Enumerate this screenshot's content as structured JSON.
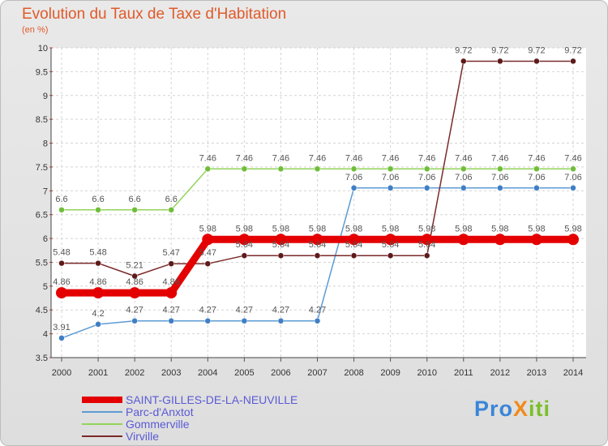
{
  "header": {
    "title": "Evolution du Taux de Taxe d'Habitation",
    "unit": "(en %)"
  },
  "logo": {
    "text": "ProXiti",
    "parts": [
      {
        "t": "Pro",
        "color": "#3a86d8"
      },
      {
        "t": "X",
        "color": "#f08a1c"
      },
      {
        "t": "iti",
        "color": "#7bbf2a"
      }
    ]
  },
  "chart_data": {
    "type": "line",
    "title": "Evolution du Taux de Taxe d'Habitation",
    "ylabel": "(en %)",
    "xlabel": "",
    "ylim": [
      3.5,
      10
    ],
    "ytick_step": 0.5,
    "yticks": [
      "3.5",
      "4",
      "4.5",
      "5",
      "5.5",
      "6",
      "6.5",
      "7",
      "7.5",
      "8",
      "8.5",
      "9",
      "9.5",
      "10"
    ],
    "grid": true,
    "legend_position": "bottom-left",
    "x": [
      "2000",
      "2001",
      "2002",
      "2003",
      "2004",
      "2005",
      "2006",
      "2007",
      "2008",
      "2009",
      "2010",
      "2011",
      "2012",
      "2013",
      "2014"
    ],
    "series": [
      {
        "name": "SAINT-GILLES-DE-LA-NEUVILLE",
        "color": "#e40000",
        "dot": "#e40000",
        "bold": true,
        "values": [
          4.86,
          4.86,
          4.86,
          4.86,
          5.98,
          5.98,
          5.98,
          5.98,
          5.98,
          5.98,
          5.98,
          5.98,
          5.98,
          5.98,
          5.98
        ],
        "labels": [
          "4.86",
          "4.86",
          "4.86",
          "4.86",
          "5.98",
          "5.98",
          "5.98",
          "5.98",
          "5.98",
          "5.98",
          "5.98",
          "5.98",
          "5.98",
          "5.98",
          "5.98"
        ]
      },
      {
        "name": "Parc-d'Anxtot",
        "color": "#5b9bd5",
        "dot": "#3f7fc4",
        "bold": false,
        "values": [
          3.91,
          4.2,
          4.27,
          4.27,
          4.27,
          4.27,
          4.27,
          4.27,
          7.06,
          7.06,
          7.06,
          7.06,
          7.06,
          7.06,
          7.06
        ],
        "labels": [
          "3.91",
          "4.2",
          "4.27",
          "4.27",
          "4.27",
          "4.27",
          "4.27",
          "4.27",
          "7.06",
          "7.06",
          "7.06",
          "7.06",
          "7.06",
          "7.06",
          "7.06"
        ]
      },
      {
        "name": "Gommerville",
        "color": "#93d35a",
        "dot": "#6fbe3a",
        "bold": false,
        "values": [
          6.6,
          6.6,
          6.6,
          6.6,
          7.46,
          7.46,
          7.46,
          7.46,
          7.46,
          7.46,
          7.46,
          7.46,
          7.46,
          7.46,
          7.46
        ],
        "labels": [
          "6.6",
          "6.6",
          "6.6",
          "6.6",
          "7.46",
          "7.46",
          "7.46",
          "7.46",
          "7.46",
          "7.46",
          "7.46",
          "7.46",
          "7.46",
          "7.46",
          "7.46"
        ]
      },
      {
        "name": "Virville",
        "color": "#7a2a2a",
        "dot": "#5e1a1a",
        "bold": false,
        "values": [
          5.48,
          5.48,
          5.21,
          5.47,
          5.47,
          5.64,
          5.64,
          5.64,
          5.64,
          5.64,
          5.64,
          9.72,
          9.72,
          9.72,
          9.72
        ],
        "labels": [
          "5.48",
          "5.48",
          "5.21",
          "5.47",
          "5.47",
          "5.64",
          "5.64",
          "5.64",
          "5.64",
          "5.64",
          "5.64",
          "9.72",
          "9.72",
          "9.72",
          "9.72"
        ]
      }
    ]
  }
}
